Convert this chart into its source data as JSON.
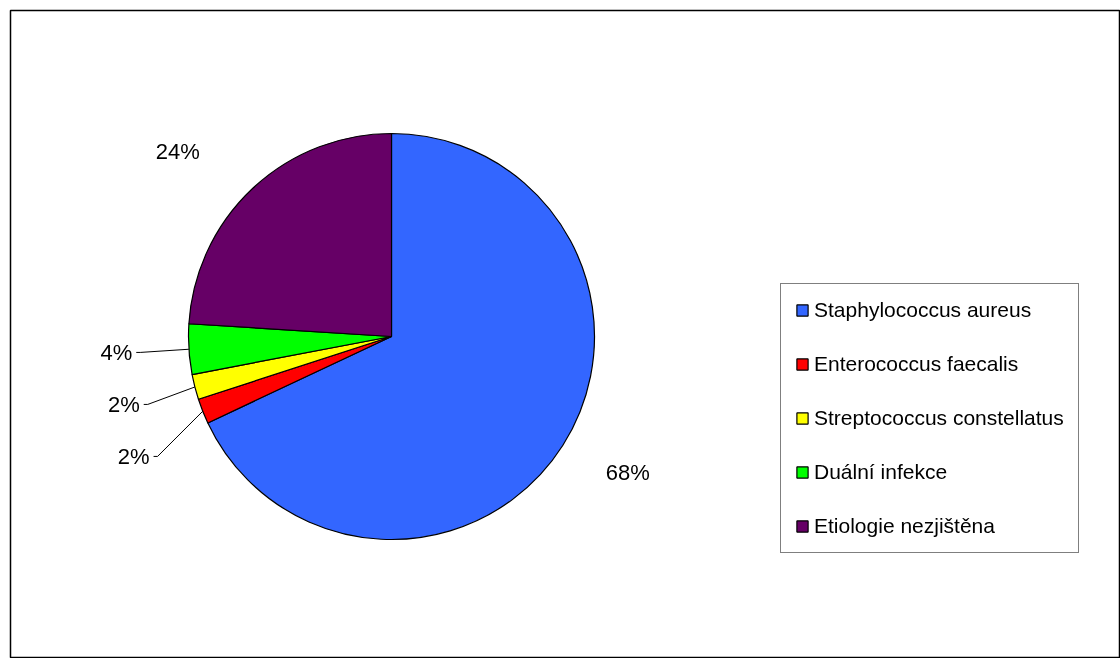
{
  "chart_data": {
    "type": "pie",
    "categories": [
      "Staphylococcus aureus",
      "Enterococcus faecalis",
      "Streptococcus constellatus",
      "Duální infekce",
      "Etiologie nezjištěna"
    ],
    "values": [
      68,
      2,
      2,
      4,
      24
    ],
    "colors": [
      "#3366ff",
      "#ff0000",
      "#ffff00",
      "#00ff00",
      "#660066"
    ],
    "value_labels": [
      "68%",
      "2%",
      "2%",
      "4%",
      "24%"
    ],
    "legend": "right"
  }
}
